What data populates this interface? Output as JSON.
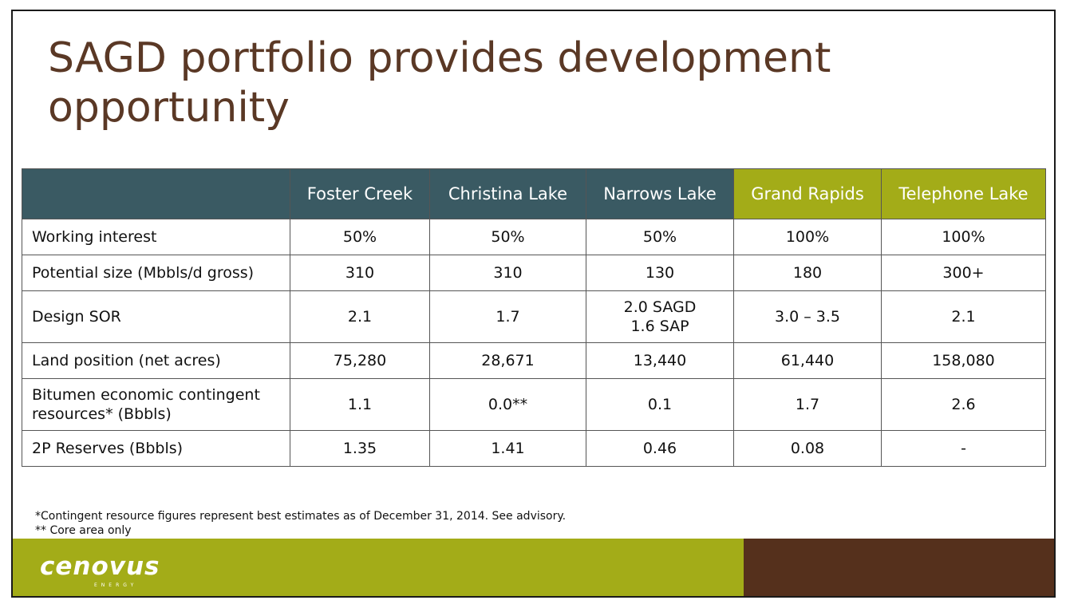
{
  "title": "SAGD portfolio provides development opportunity",
  "table": {
    "columns": [
      "",
      "Foster Creek",
      "Christina Lake",
      "Narrows Lake",
      "Grand Rapids",
      "Telephone Lake"
    ],
    "rows": [
      {
        "label": "Working interest",
        "values": [
          "50%",
          "50%",
          "50%",
          "100%",
          "100%"
        ]
      },
      {
        "label": "Potential size (Mbbls/d gross)",
        "values": [
          "310",
          "310",
          "130",
          "180",
          "300+"
        ]
      },
      {
        "label": "Design SOR",
        "values": [
          "2.1",
          "1.7",
          "2.0 SAGD\n1.6 SAP",
          "3.0 – 3.5",
          "2.1"
        ]
      },
      {
        "label": "Land position (net acres)",
        "values": [
          "75,280",
          "28,671",
          "13,440",
          "61,440",
          "158,080"
        ]
      },
      {
        "label": "Bitumen economic contingent resources* (Bbbls)",
        "values": [
          "1.1",
          "0.0**",
          "0.1",
          "1.7",
          "2.6"
        ]
      },
      {
        "label": "2P Reserves (Bbbls)",
        "values": [
          "1.35",
          "1.41",
          "0.46",
          "0.08",
          "-"
        ]
      }
    ]
  },
  "footnotes": [
    "*Contingent resource figures represent best estimates as of December 31, 2014. See advisory.",
    "** Core area only"
  ],
  "logo": {
    "text": "cenovus",
    "subtext": "ENERGY"
  },
  "colors": {
    "title": "#5a3825",
    "header_teal": "#3a5a63",
    "header_gold": "#a3ac18",
    "footer_green": "#a3ac18",
    "footer_brown": "#55301c"
  }
}
